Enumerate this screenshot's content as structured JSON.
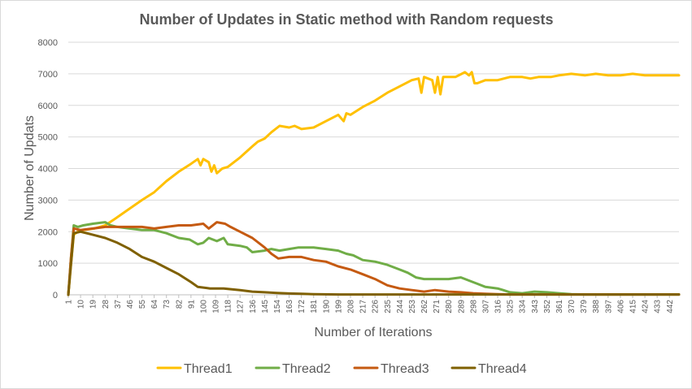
{
  "chart_data": {
    "type": "line",
    "title": "Number of Updates in Static method with Random requests",
    "xlabel": "Number of Iterations",
    "ylabel": "Number of Updats",
    "ylim": [
      0,
      8000
    ],
    "yticks": [
      0,
      1000,
      2000,
      3000,
      4000,
      5000,
      6000,
      7000,
      8000
    ],
    "xlim": [
      1,
      449
    ],
    "xticks": [
      1,
      10,
      19,
      28,
      37,
      46,
      55,
      64,
      73,
      82,
      91,
      100,
      109,
      118,
      127,
      136,
      145,
      154,
      163,
      172,
      181,
      190,
      199,
      208,
      217,
      226,
      235,
      244,
      253,
      262,
      271,
      280,
      289,
      298,
      307,
      316,
      325,
      334,
      343,
      352,
      361,
      370,
      379,
      388,
      397,
      406,
      415,
      424,
      433,
      442
    ],
    "grid": true,
    "legend_position": "bottom",
    "series": [
      {
        "name": "Thread1",
        "color": "#FFC000",
        "points": [
          [
            1,
            0
          ],
          [
            3,
            1000
          ],
          [
            5,
            1900
          ],
          [
            8,
            2000
          ],
          [
            12,
            2050
          ],
          [
            20,
            2100
          ],
          [
            28,
            2200
          ],
          [
            35,
            2400
          ],
          [
            45,
            2700
          ],
          [
            55,
            3000
          ],
          [
            64,
            3250
          ],
          [
            73,
            3600
          ],
          [
            82,
            3900
          ],
          [
            91,
            4150
          ],
          [
            96,
            4300
          ],
          [
            98,
            4100
          ],
          [
            100,
            4300
          ],
          [
            104,
            4200
          ],
          [
            106,
            3900
          ],
          [
            108,
            4100
          ],
          [
            110,
            3850
          ],
          [
            114,
            4000
          ],
          [
            118,
            4050
          ],
          [
            127,
            4350
          ],
          [
            136,
            4700
          ],
          [
            140,
            4850
          ],
          [
            145,
            4950
          ],
          [
            150,
            5150
          ],
          [
            156,
            5350
          ],
          [
            163,
            5300
          ],
          [
            167,
            5350
          ],
          [
            172,
            5250
          ],
          [
            181,
            5300
          ],
          [
            190,
            5500
          ],
          [
            199,
            5700
          ],
          [
            203,
            5500
          ],
          [
            205,
            5750
          ],
          [
            208,
            5700
          ],
          [
            217,
            5950
          ],
          [
            226,
            6150
          ],
          [
            235,
            6400
          ],
          [
            244,
            6600
          ],
          [
            253,
            6800
          ],
          [
            258,
            6850
          ],
          [
            260,
            6400
          ],
          [
            262,
            6900
          ],
          [
            268,
            6800
          ],
          [
            270,
            6400
          ],
          [
            272,
            6900
          ],
          [
            274,
            6350
          ],
          [
            276,
            6900
          ],
          [
            285,
            6900
          ],
          [
            292,
            7050
          ],
          [
            295,
            6950
          ],
          [
            297,
            7050
          ],
          [
            299,
            6700
          ],
          [
            301,
            6700
          ],
          [
            307,
            6800
          ],
          [
            316,
            6800
          ],
          [
            325,
            6900
          ],
          [
            334,
            6900
          ],
          [
            340,
            6850
          ],
          [
            346,
            6900
          ],
          [
            355,
            6900
          ],
          [
            361,
            6950
          ],
          [
            370,
            7000
          ],
          [
            380,
            6950
          ],
          [
            388,
            7000
          ],
          [
            397,
            6950
          ],
          [
            406,
            6950
          ],
          [
            415,
            7000
          ],
          [
            424,
            6950
          ],
          [
            433,
            6950
          ],
          [
            442,
            6950
          ],
          [
            449,
            6950
          ]
        ]
      },
      {
        "name": "Thread2",
        "color": "#70AD47",
        "points": [
          [
            1,
            0
          ],
          [
            3,
            1200
          ],
          [
            5,
            2200
          ],
          [
            8,
            2150
          ],
          [
            12,
            2200
          ],
          [
            19,
            2250
          ],
          [
            28,
            2300
          ],
          [
            32,
            2200
          ],
          [
            37,
            2150
          ],
          [
            46,
            2100
          ],
          [
            55,
            2050
          ],
          [
            64,
            2050
          ],
          [
            73,
            1950
          ],
          [
            82,
            1800
          ],
          [
            90,
            1750
          ],
          [
            96,
            1600
          ],
          [
            100,
            1650
          ],
          [
            104,
            1800
          ],
          [
            110,
            1700
          ],
          [
            115,
            1800
          ],
          [
            118,
            1600
          ],
          [
            127,
            1550
          ],
          [
            132,
            1500
          ],
          [
            136,
            1350
          ],
          [
            145,
            1400
          ],
          [
            150,
            1450
          ],
          [
            156,
            1400
          ],
          [
            163,
            1450
          ],
          [
            170,
            1500
          ],
          [
            181,
            1500
          ],
          [
            190,
            1450
          ],
          [
            199,
            1400
          ],
          [
            205,
            1300
          ],
          [
            210,
            1250
          ],
          [
            217,
            1100
          ],
          [
            226,
            1050
          ],
          [
            235,
            950
          ],
          [
            244,
            800
          ],
          [
            250,
            700
          ],
          [
            256,
            550
          ],
          [
            262,
            500
          ],
          [
            270,
            500
          ],
          [
            280,
            500
          ],
          [
            289,
            550
          ],
          [
            295,
            450
          ],
          [
            301,
            350
          ],
          [
            307,
            250
          ],
          [
            316,
            200
          ],
          [
            320,
            150
          ],
          [
            325,
            80
          ],
          [
            334,
            50
          ],
          [
            343,
            100
          ],
          [
            352,
            80
          ],
          [
            361,
            50
          ],
          [
            370,
            20
          ],
          [
            380,
            10
          ],
          [
            449,
            10
          ]
        ]
      },
      {
        "name": "Thread3",
        "color": "#C55A11",
        "points": [
          [
            1,
            0
          ],
          [
            3,
            1200
          ],
          [
            5,
            2100
          ],
          [
            10,
            2050
          ],
          [
            19,
            2100
          ],
          [
            28,
            2150
          ],
          [
            37,
            2150
          ],
          [
            46,
            2150
          ],
          [
            55,
            2150
          ],
          [
            64,
            2100
          ],
          [
            73,
            2150
          ],
          [
            82,
            2200
          ],
          [
            91,
            2200
          ],
          [
            100,
            2250
          ],
          [
            104,
            2100
          ],
          [
            110,
            2300
          ],
          [
            116,
            2250
          ],
          [
            120,
            2150
          ],
          [
            127,
            2000
          ],
          [
            136,
            1800
          ],
          [
            145,
            1500
          ],
          [
            150,
            1300
          ],
          [
            155,
            1150
          ],
          [
            163,
            1200
          ],
          [
            172,
            1200
          ],
          [
            181,
            1100
          ],
          [
            190,
            1050
          ],
          [
            199,
            900
          ],
          [
            208,
            800
          ],
          [
            217,
            650
          ],
          [
            226,
            500
          ],
          [
            235,
            300
          ],
          [
            244,
            200
          ],
          [
            253,
            150
          ],
          [
            262,
            100
          ],
          [
            270,
            150
          ],
          [
            280,
            100
          ],
          [
            289,
            80
          ],
          [
            298,
            50
          ],
          [
            307,
            30
          ],
          [
            316,
            20
          ],
          [
            325,
            10
          ],
          [
            449,
            10
          ]
        ]
      },
      {
        "name": "Thread4",
        "color": "#7F6000",
        "points": [
          [
            1,
            0
          ],
          [
            3,
            1000
          ],
          [
            5,
            1950
          ],
          [
            10,
            2000
          ],
          [
            19,
            1900
          ],
          [
            28,
            1800
          ],
          [
            37,
            1650
          ],
          [
            46,
            1450
          ],
          [
            55,
            1200
          ],
          [
            64,
            1050
          ],
          [
            73,
            850
          ],
          [
            82,
            650
          ],
          [
            91,
            400
          ],
          [
            96,
            250
          ],
          [
            105,
            200
          ],
          [
            115,
            200
          ],
          [
            127,
            150
          ],
          [
            136,
            100
          ],
          [
            145,
            80
          ],
          [
            154,
            60
          ],
          [
            163,
            40
          ],
          [
            172,
            30
          ],
          [
            181,
            20
          ],
          [
            200,
            10
          ],
          [
            449,
            10
          ]
        ]
      }
    ]
  }
}
